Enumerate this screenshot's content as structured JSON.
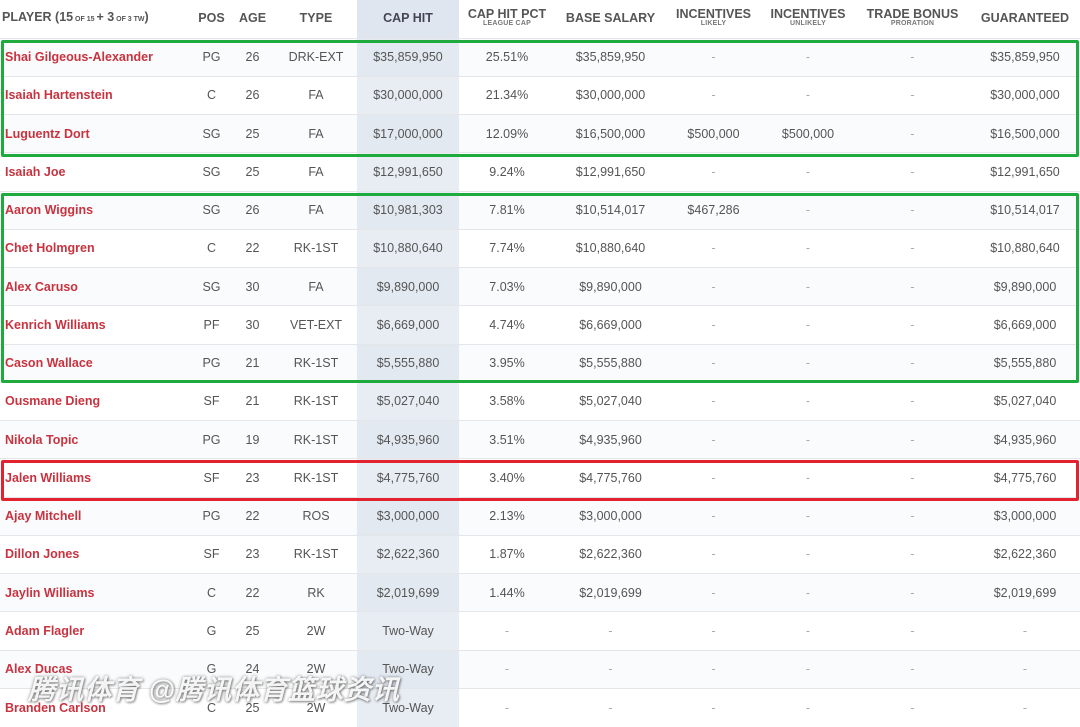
{
  "header": {
    "player": "PLAYER (",
    "count_main": "15",
    "count_of": " OF 15 ",
    "plus": "+ ",
    "count_tw": "3",
    "count_tw_of": " OF 3 TW",
    "close": ")",
    "pos": "POS",
    "age": "AGE",
    "type": "TYPE",
    "cap_hit": "CAP HIT",
    "cap_hit_pct": "CAP HIT PCT",
    "cap_hit_pct_sub": "LEAGUE CAP",
    "base_salary": "BASE SALARY",
    "incentives_likely": "INCENTIVES",
    "incentives_likely_sub": "LIKELY",
    "incentives_unlikely": "INCENTIVES",
    "incentives_unlikely_sub": "UNLIKELY",
    "trade_bonus": "TRADE BONUS",
    "trade_bonus_sub": "PRORATION",
    "guaranteed": "GUARANTEED"
  },
  "rows": [
    {
      "player": "Shai Gilgeous-Alexander",
      "pos": "PG",
      "age": "26",
      "type": "DRK-EXT",
      "cap_hit": "$35,859,950",
      "pct": "25.51%",
      "base": "$35,859,950",
      "inc_l": "-",
      "inc_u": "-",
      "trade": "-",
      "guar": "$35,859,950"
    },
    {
      "player": "Isaiah Hartenstein",
      "pos": "C",
      "age": "26",
      "type": "FA",
      "cap_hit": "$30,000,000",
      "pct": "21.34%",
      "base": "$30,000,000",
      "inc_l": "-",
      "inc_u": "-",
      "trade": "-",
      "guar": "$30,000,000"
    },
    {
      "player": "Luguentz Dort",
      "pos": "SG",
      "age": "25",
      "type": "FA",
      "cap_hit": "$17,000,000",
      "pct": "12.09%",
      "base": "$16,500,000",
      "inc_l": "$500,000",
      "inc_u": "$500,000",
      "trade": "-",
      "guar": "$16,500,000"
    },
    {
      "player": "Isaiah Joe",
      "pos": "SG",
      "age": "25",
      "type": "FA",
      "cap_hit": "$12,991,650",
      "pct": "9.24%",
      "base": "$12,991,650",
      "inc_l": "-",
      "inc_u": "-",
      "trade": "-",
      "guar": "$12,991,650"
    },
    {
      "player": "Aaron Wiggins",
      "pos": "SG",
      "age": "26",
      "type": "FA",
      "cap_hit": "$10,981,303",
      "pct": "7.81%",
      "base": "$10,514,017",
      "inc_l": "$467,286",
      "inc_u": "-",
      "trade": "-",
      "guar": "$10,514,017"
    },
    {
      "player": "Chet Holmgren",
      "pos": "C",
      "age": "22",
      "type": "RK-1ST",
      "cap_hit": "$10,880,640",
      "pct": "7.74%",
      "base": "$10,880,640",
      "inc_l": "-",
      "inc_u": "-",
      "trade": "-",
      "guar": "$10,880,640"
    },
    {
      "player": "Alex Caruso",
      "pos": "SG",
      "age": "30",
      "type": "FA",
      "cap_hit": "$9,890,000",
      "pct": "7.03%",
      "base": "$9,890,000",
      "inc_l": "-",
      "inc_u": "-",
      "trade": "-",
      "guar": "$9,890,000"
    },
    {
      "player": "Kenrich Williams",
      "pos": "PF",
      "age": "30",
      "type": "VET-EXT",
      "cap_hit": "$6,669,000",
      "pct": "4.74%",
      "base": "$6,669,000",
      "inc_l": "-",
      "inc_u": "-",
      "trade": "-",
      "guar": "$6,669,000"
    },
    {
      "player": "Cason Wallace",
      "pos": "PG",
      "age": "21",
      "type": "RK-1ST",
      "cap_hit": "$5,555,880",
      "pct": "3.95%",
      "base": "$5,555,880",
      "inc_l": "-",
      "inc_u": "-",
      "trade": "-",
      "guar": "$5,555,880"
    },
    {
      "player": "Ousmane Dieng",
      "pos": "SF",
      "age": "21",
      "type": "RK-1ST",
      "cap_hit": "$5,027,040",
      "pct": "3.58%",
      "base": "$5,027,040",
      "inc_l": "-",
      "inc_u": "-",
      "trade": "-",
      "guar": "$5,027,040"
    },
    {
      "player": "Nikola Topic",
      "pos": "PG",
      "age": "19",
      "type": "RK-1ST",
      "cap_hit": "$4,935,960",
      "pct": "3.51%",
      "base": "$4,935,960",
      "inc_l": "-",
      "inc_u": "-",
      "trade": "-",
      "guar": "$4,935,960"
    },
    {
      "player": "Jalen Williams",
      "pos": "SF",
      "age": "23",
      "type": "RK-1ST",
      "cap_hit": "$4,775,760",
      "pct": "3.40%",
      "base": "$4,775,760",
      "inc_l": "-",
      "inc_u": "-",
      "trade": "-",
      "guar": "$4,775,760"
    },
    {
      "player": "Ajay Mitchell",
      "pos": "PG",
      "age": "22",
      "type": "ROS",
      "cap_hit": "$3,000,000",
      "pct": "2.13%",
      "base": "$3,000,000",
      "inc_l": "-",
      "inc_u": "-",
      "trade": "-",
      "guar": "$3,000,000"
    },
    {
      "player": "Dillon Jones",
      "pos": "SF",
      "age": "23",
      "type": "RK-1ST",
      "cap_hit": "$2,622,360",
      "pct": "1.87%",
      "base": "$2,622,360",
      "inc_l": "-",
      "inc_u": "-",
      "trade": "-",
      "guar": "$2,622,360"
    },
    {
      "player": "Jaylin Williams",
      "pos": "C",
      "age": "22",
      "type": "RK",
      "cap_hit": "$2,019,699",
      "pct": "1.44%",
      "base": "$2,019,699",
      "inc_l": "-",
      "inc_u": "-",
      "trade": "-",
      "guar": "$2,019,699"
    },
    {
      "player": "Adam Flagler",
      "pos": "G",
      "age": "25",
      "type": "2W",
      "cap_hit": "Two-Way",
      "pct": "-",
      "base": "-",
      "inc_l": "-",
      "inc_u": "-",
      "trade": "-",
      "guar": "-"
    },
    {
      "player": "Alex Ducas",
      "pos": "G",
      "age": "24",
      "type": "2W",
      "cap_hit": "Two-Way",
      "pct": "-",
      "base": "-",
      "inc_l": "-",
      "inc_u": "-",
      "trade": "-",
      "guar": "-"
    },
    {
      "player": "Branden Carlson",
      "pos": "C",
      "age": "25",
      "type": "2W",
      "cap_hit": "Two-Way",
      "pct": "-",
      "base": "-",
      "inc_l": "-",
      "inc_u": "-",
      "trade": "-",
      "guar": "-"
    }
  ],
  "watermark": "腾讯体育 @腾讯体育篮球资讯",
  "colors": {
    "player_name": "#c8333f",
    "highlight_green": "#1faa3d",
    "highlight_red": "#e2232f",
    "cap_hit_column": "#e8edf4"
  }
}
